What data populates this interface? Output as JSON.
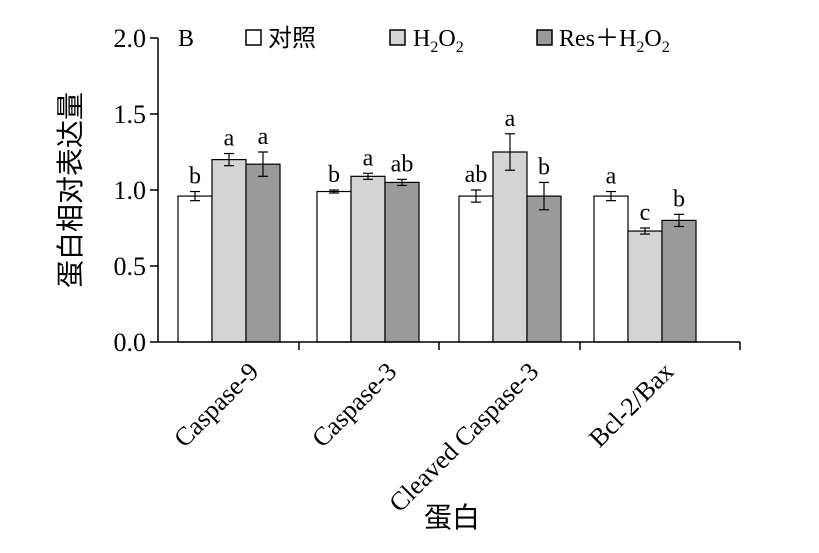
{
  "chart_data": {
    "type": "bar",
    "panel_label": "B",
    "title": "",
    "xlabel": "蛋白",
    "ylabel": "蛋白相对表达量",
    "ylim": [
      0,
      2.0
    ],
    "yticks": [
      "0.0",
      "0.5",
      "1.0",
      "1.5",
      "2.0"
    ],
    "grid": false,
    "legend_position": "top",
    "categories": [
      "Caspase-9",
      "Caspase-3",
      "Cleaved Caspase-3",
      "Bcl-2/Bax"
    ],
    "series": [
      {
        "name": "对照",
        "color": "#ffffff",
        "values": [
          0.96,
          0.99,
          0.96,
          0.96
        ],
        "errors": [
          0.03,
          0.01,
          0.04,
          0.03
        ],
        "labels": [
          "b",
          "b",
          "ab",
          "a"
        ]
      },
      {
        "name": "H2O2",
        "color": "#d4d4d4",
        "values": [
          1.2,
          1.09,
          1.25,
          0.73
        ],
        "errors": [
          0.04,
          0.02,
          0.12,
          0.02
        ],
        "labels": [
          "a",
          "a",
          "a",
          "c"
        ]
      },
      {
        "name": "Res＋H2O2",
        "color": "#9a9a9a",
        "values": [
          1.17,
          1.05,
          0.96,
          0.8
        ],
        "errors": [
          0.08,
          0.02,
          0.09,
          0.04
        ],
        "labels": [
          "a",
          "ab",
          "b",
          "b"
        ]
      }
    ]
  }
}
